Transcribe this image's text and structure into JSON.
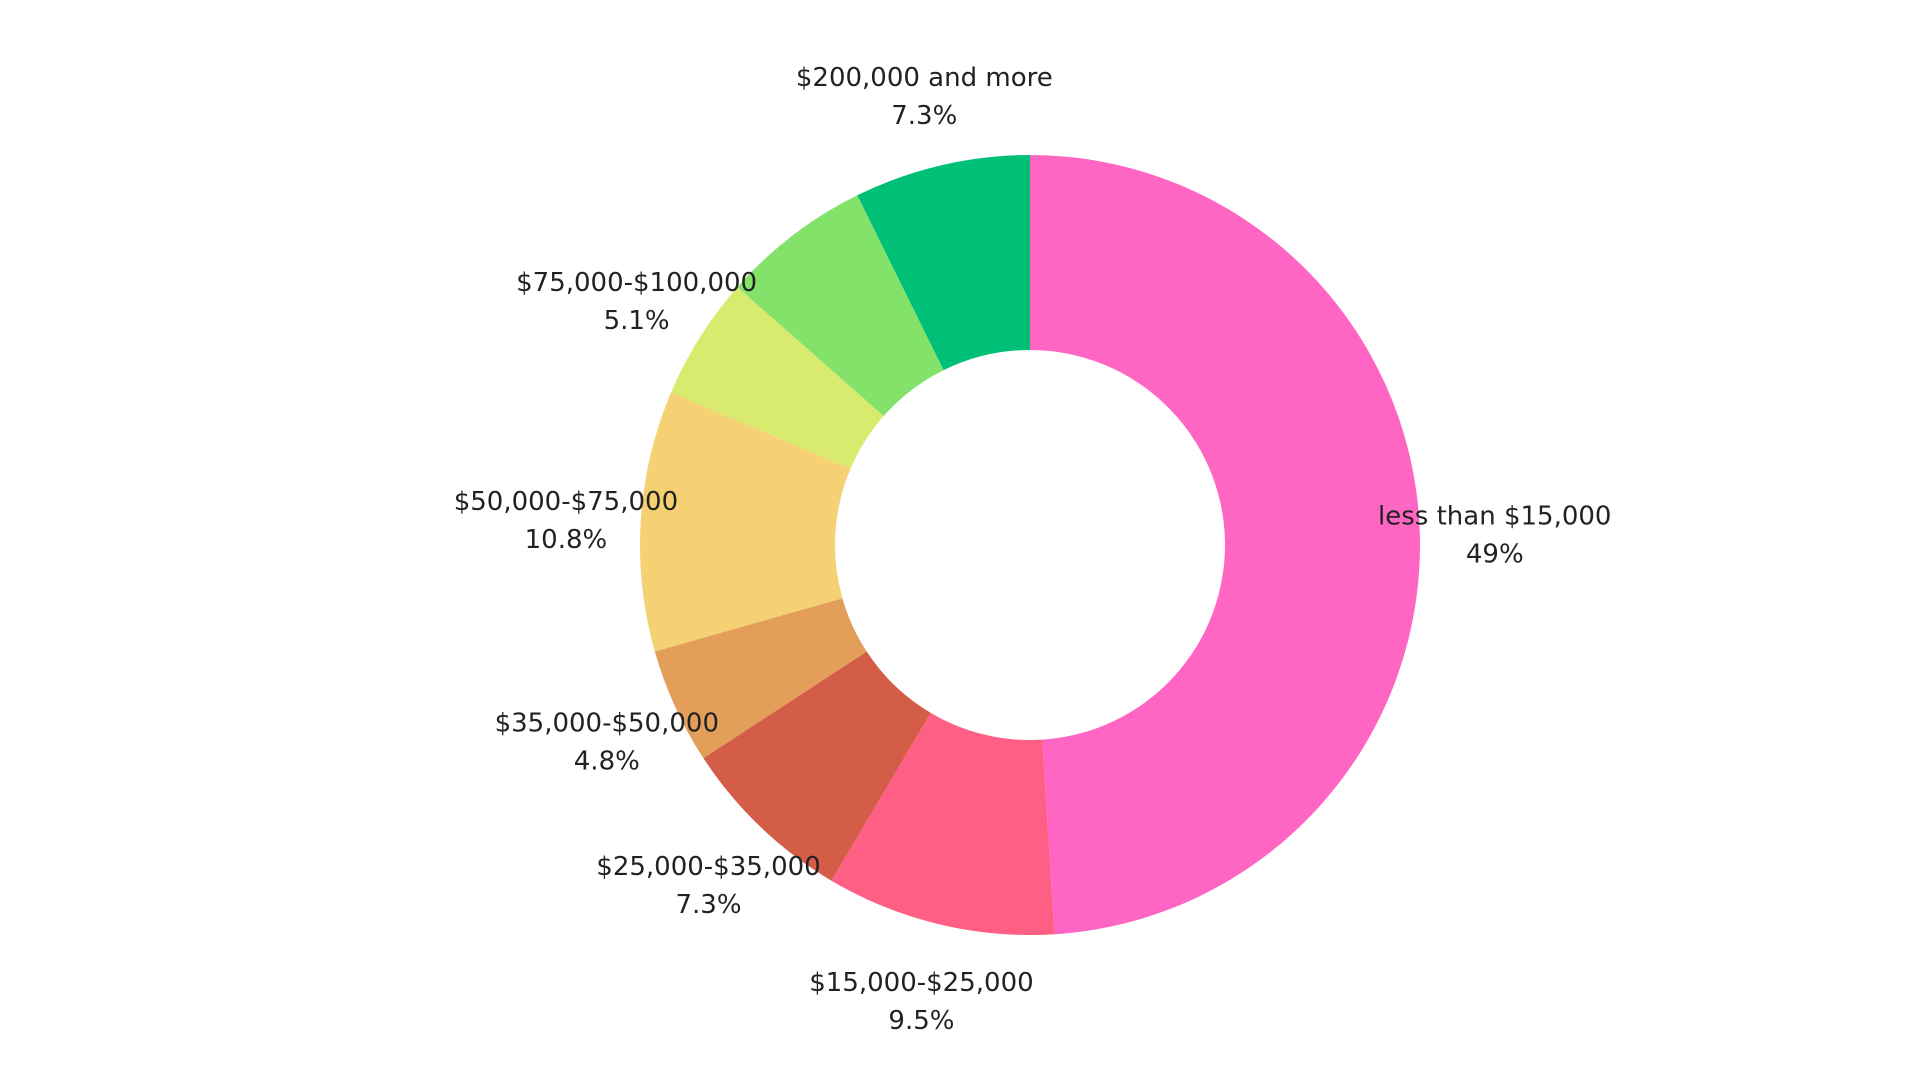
{
  "chart_data": {
    "type": "pie",
    "donut": true,
    "title": "",
    "slices": [
      {
        "label": "less than $15,000",
        "value": 49,
        "pct_text": "49%",
        "color": "#FF66C4"
      },
      {
        "label": "$15,000-$25,000",
        "value": 9.5,
        "pct_text": "9.5%",
        "color": "#FF5F84"
      },
      {
        "label": "$25,000-$35,000",
        "value": 7.3,
        "pct_text": "7.3%",
        "color": "#D35D47"
      },
      {
        "label": "$35,000-$50,000",
        "value": 4.8,
        "pct_text": "4.8%",
        "color": "#E39F5A"
      },
      {
        "label": "$50,000-$75,000",
        "value": 10.8,
        "pct_text": "10.8%",
        "color": "#F5D174"
      },
      {
        "label": "$75,000-$100,000",
        "value": 5.1,
        "pct_text": "5.1%",
        "color": "#D8EB6E"
      },
      {
        "label": "",
        "value": 6.2,
        "pct_text": "",
        "color": "#83E26A"
      },
      {
        "label": "$200,000 and more",
        "value": 7.3,
        "pct_text": "7.3%",
        "color": "#00BF77"
      }
    ]
  }
}
